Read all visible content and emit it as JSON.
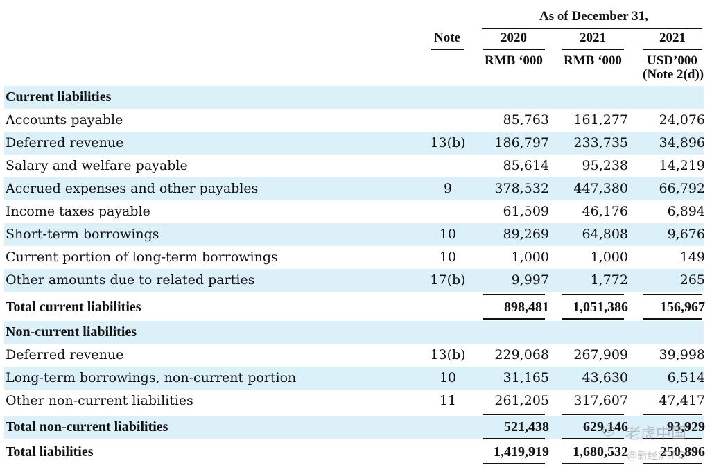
{
  "header": {
    "as_of": "As of December 31,",
    "note_col": "Note",
    "years": [
      "2020",
      "2021",
      "2021"
    ],
    "units": [
      "RMB ‘000",
      "RMB ‘000",
      "USD’000"
    ],
    "units_note": "(Note 2(d))"
  },
  "rows": [
    {
      "label": "Current liabilities",
      "note": "",
      "v2020": "",
      "v2021": "",
      "usd2021": ""
    },
    {
      "label": "Accounts payable",
      "note": "",
      "v2020": "85,763",
      "v2021": "161,277",
      "usd2021": "24,076"
    },
    {
      "label": "Deferred revenue",
      "note": "13(b)",
      "v2020": "186,797",
      "v2021": "233,735",
      "usd2021": "34,896"
    },
    {
      "label": "Salary and welfare payable",
      "note": "",
      "v2020": "85,614",
      "v2021": "95,238",
      "usd2021": "14,219"
    },
    {
      "label": "Accrued expenses and other payables",
      "note": "9",
      "v2020": "378,532",
      "v2021": "447,380",
      "usd2021": "66,792"
    },
    {
      "label": "Income taxes payable",
      "note": "",
      "v2020": "61,509",
      "v2021": "46,176",
      "usd2021": "6,894"
    },
    {
      "label": "Short-term borrowings",
      "note": "10",
      "v2020": "89,269",
      "v2021": "64,808",
      "usd2021": "9,676"
    },
    {
      "label": "Current portion of long-term borrowings",
      "note": "10",
      "v2020": "1,000",
      "v2021": "1,000",
      "usd2021": "149"
    },
    {
      "label": "Other amounts due to related parties",
      "note": "17(b)",
      "v2020": "9,997",
      "v2021": "1,772",
      "usd2021": "265"
    },
    {
      "label": "Total current liabilities",
      "note": "",
      "v2020": "898,481",
      "v2021": "1,051,386",
      "usd2021": "156,967"
    },
    {
      "label": "Non-current liabilities",
      "note": "",
      "v2020": "",
      "v2021": "",
      "usd2021": ""
    },
    {
      "label": "Deferred revenue",
      "note": "13(b)",
      "v2020": "229,068",
      "v2021": "267,909",
      "usd2021": "39,998"
    },
    {
      "label": "Long-term borrowings, non-current portion",
      "note": "10",
      "v2020": "31,165",
      "v2021": "43,630",
      "usd2021": "6,514"
    },
    {
      "label": "Other non-current liabilities",
      "note": "11",
      "v2020": "261,205",
      "v2021": "317,607",
      "usd2021": "47,417"
    },
    {
      "label": "Total non-current liabilities",
      "note": "",
      "v2020": "521,438",
      "v2021": "629,146",
      "usd2021": "93,929"
    },
    {
      "label": "Total liabilities",
      "note": "",
      "v2020": "1,419,919",
      "v2021": "1,680,532",
      "usd2021": "250,896"
    }
  ],
  "watermark": {
    "brand": "老虎中国",
    "sub": "@新经济IPO"
  }
}
